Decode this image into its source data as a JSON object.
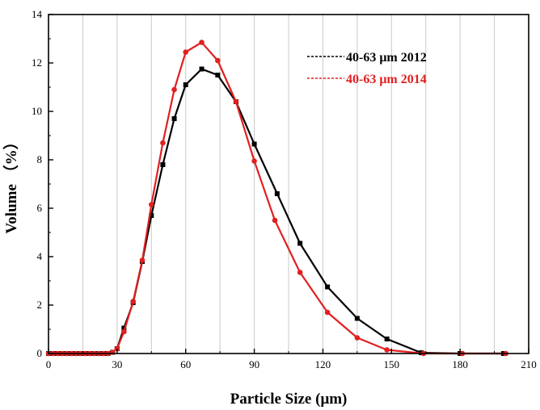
{
  "chart_data": {
    "type": "line",
    "xlabel": "Particle Size (μm)",
    "ylabel": "Volume （%）",
    "xlim": [
      0,
      210
    ],
    "ylim": [
      0,
      14
    ],
    "xticks": [
      0,
      30,
      60,
      90,
      120,
      150,
      180,
      210
    ],
    "yticks": [
      0,
      2,
      4,
      6,
      8,
      10,
      12,
      14
    ],
    "xgrid": [
      15,
      30,
      45,
      60,
      75,
      90,
      105,
      120,
      135,
      150,
      165,
      180,
      195
    ],
    "grid": "vertical",
    "legend_position": "top-right",
    "series": [
      {
        "name": "40-63 μm 2012",
        "color": "#000000",
        "marker": "square",
        "x": [
          0,
          2,
          4,
          6,
          8,
          10,
          12,
          14,
          16,
          18,
          20,
          22,
          24,
          26,
          28,
          30,
          33,
          37,
          41,
          45,
          50,
          55,
          60,
          67,
          74,
          82,
          90,
          100,
          110,
          122,
          135,
          148,
          163,
          180,
          199
        ],
        "y": [
          0,
          0,
          0,
          0,
          0,
          0,
          0,
          0,
          0,
          0,
          0,
          0,
          0,
          0,
          0.05,
          0.2,
          1.05,
          2.1,
          3.8,
          5.7,
          7.8,
          9.7,
          11.1,
          11.75,
          11.5,
          10.4,
          8.65,
          6.6,
          4.55,
          2.75,
          1.45,
          0.6,
          0.03,
          0,
          0
        ]
      },
      {
        "name": "40-63 μm 2014",
        "color": "#e02020",
        "marker": "circle",
        "x": [
          0,
          2,
          4,
          6,
          8,
          10,
          12,
          14,
          16,
          18,
          20,
          22,
          24,
          26,
          28,
          30,
          33,
          37,
          41,
          45,
          50,
          55,
          60,
          67,
          74,
          82,
          90,
          99,
          110,
          122,
          135,
          148,
          164,
          181,
          200
        ],
        "y": [
          0,
          0,
          0,
          0,
          0,
          0,
          0,
          0,
          0,
          0,
          0,
          0,
          0,
          0,
          0.05,
          0.2,
          0.9,
          2.15,
          3.85,
          6.15,
          8.7,
          10.9,
          12.45,
          12.85,
          12.1,
          10.4,
          7.95,
          5.5,
          3.35,
          1.7,
          0.65,
          0.15,
          0,
          0,
          0
        ]
      }
    ]
  }
}
